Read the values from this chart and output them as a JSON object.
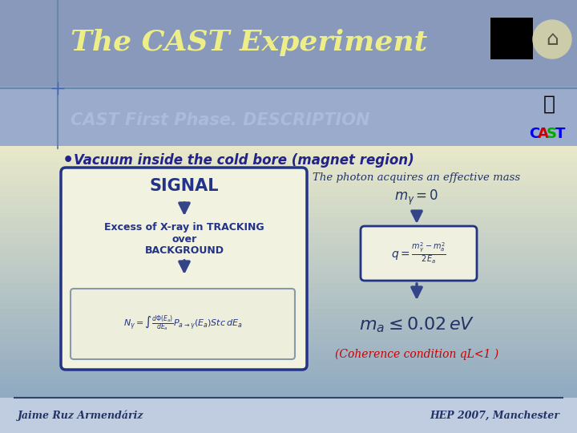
{
  "title": "The CAST Experiment",
  "subtitle": "CAST First Phase. DESCRIPTION",
  "bullet_text": "Vacuum inside the cold bore (magnet region)",
  "signal_label": "SIGNAL",
  "signal_box_text": "Excess of X-ray in TRACKING\nover\nBACKGROUND",
  "formula_signal": "$N_{\\gamma} = \\int \\frac{d\\Phi(E_a)}{dE_a} P_{a\\rightarrow\\gamma}(E_a) St c\\, dE_a$",
  "photon_text": "The photon acquires an effective mass",
  "mass_zero": "$m_{\\gamma} = 0$",
  "formula_q": "$q = \\frac{m_{\\gamma}^2 - m_a^2}{2E_a}$",
  "mass_condition": "$m_a \\leq 0.02\\, eV$",
  "coherence_text": "(Coherence condition qL<1 )",
  "author": "Jaime Ruz Armendáriz",
  "conference": "HEP 2007, Manchester",
  "title_color": "#eeee88",
  "subtitle_color": "#aabbdd",
  "bullet_color": "#222288",
  "footer_color": "#223366",
  "coherence_color": "#cc0000",
  "arrow_color": "#334488"
}
